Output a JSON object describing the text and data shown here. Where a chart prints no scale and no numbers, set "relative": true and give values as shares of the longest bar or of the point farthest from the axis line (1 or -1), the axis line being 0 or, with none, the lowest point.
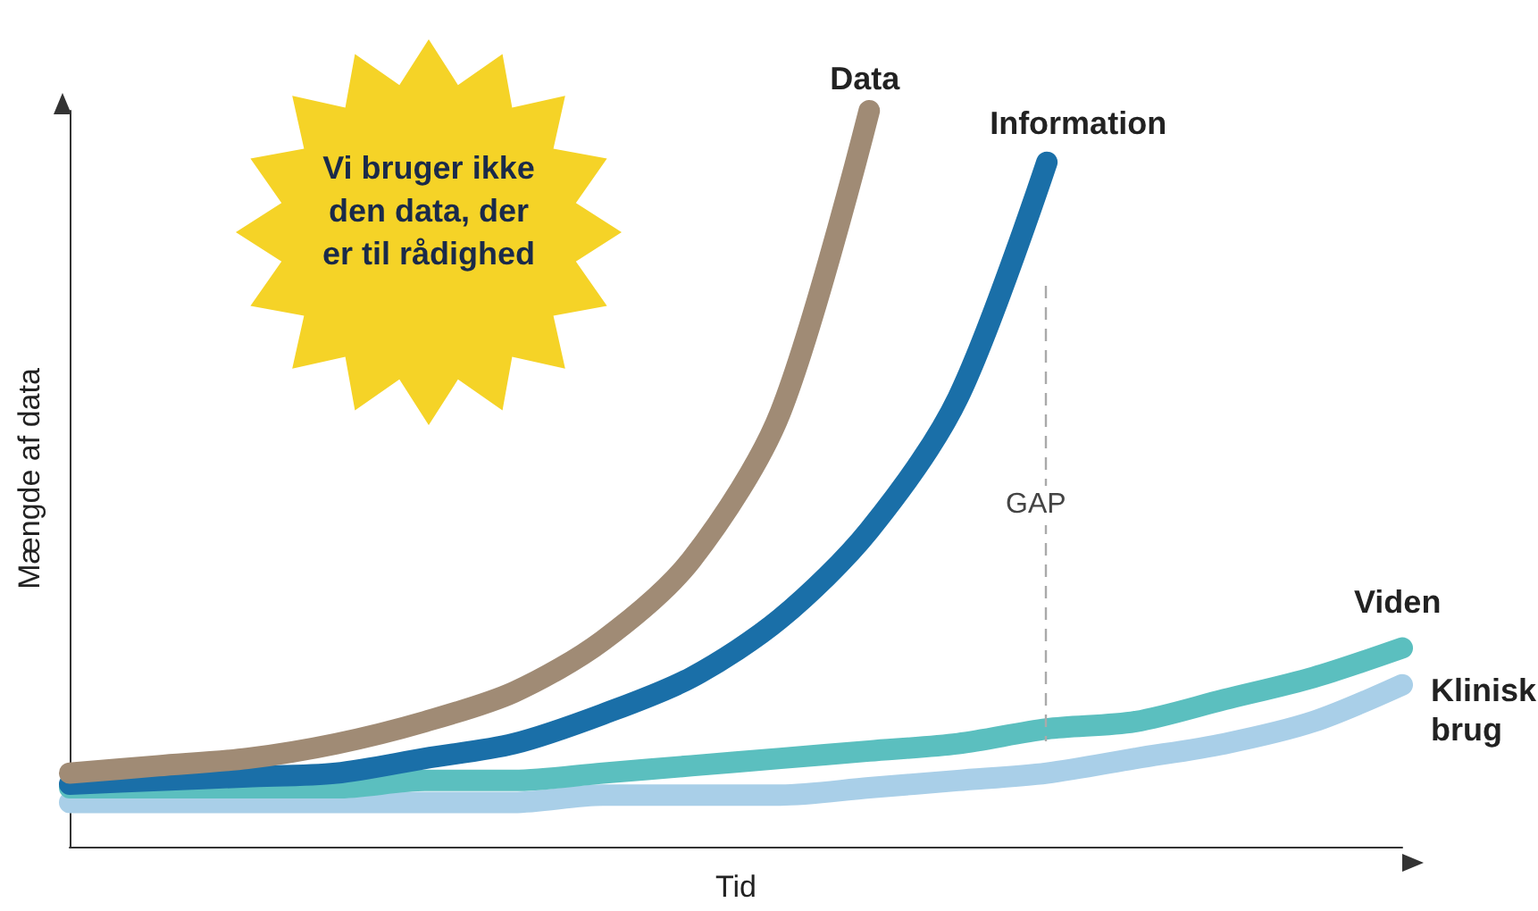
{
  "chart_data": {
    "type": "line",
    "relative": true,
    "xlabel": "Tid",
    "ylabel": "Mængde af data",
    "grid": false,
    "legend": false,
    "line_style": "solid",
    "annotations": [
      "Vi bruger ikke den data, der er til rådighed",
      "GAP"
    ],
    "categories": [
      null,
      null,
      null,
      null,
      null,
      null,
      null,
      null,
      null,
      null,
      null,
      null,
      null,
      null,
      null,
      null
    ],
    "series": [
      {
        "name": "Data",
        "color": "#a08b75",
        "values": [
          0.1,
          0.11,
          0.12,
          0.14,
          0.17,
          0.21,
          0.28,
          0.39,
          0.59,
          1.0,
          null,
          null,
          null,
          null,
          null,
          null
        ]
      },
      {
        "name": "Information",
        "color": "#1a6fa8",
        "values": [
          0.085,
          0.09,
          0.095,
          0.1,
          0.12,
          0.14,
          0.18,
          0.23,
          0.31,
          0.43,
          0.61,
          0.93,
          null,
          null,
          null,
          null
        ]
      },
      {
        "name": "Viden",
        "color": "#5bbfbf",
        "values": [
          0.08,
          0.08,
          0.08,
          0.08,
          0.09,
          0.09,
          0.1,
          0.11,
          0.12,
          0.13,
          0.14,
          0.16,
          0.17,
          0.2,
          0.23,
          0.27
        ]
      },
      {
        "name": "Klinisk brug",
        "color": "#a9cfe8",
        "values": [
          0.06,
          0.06,
          0.06,
          0.06,
          0.06,
          0.06,
          0.07,
          0.07,
          0.07,
          0.08,
          0.09,
          0.1,
          0.12,
          0.14,
          0.17,
          0.22
        ]
      }
    ]
  }
}
